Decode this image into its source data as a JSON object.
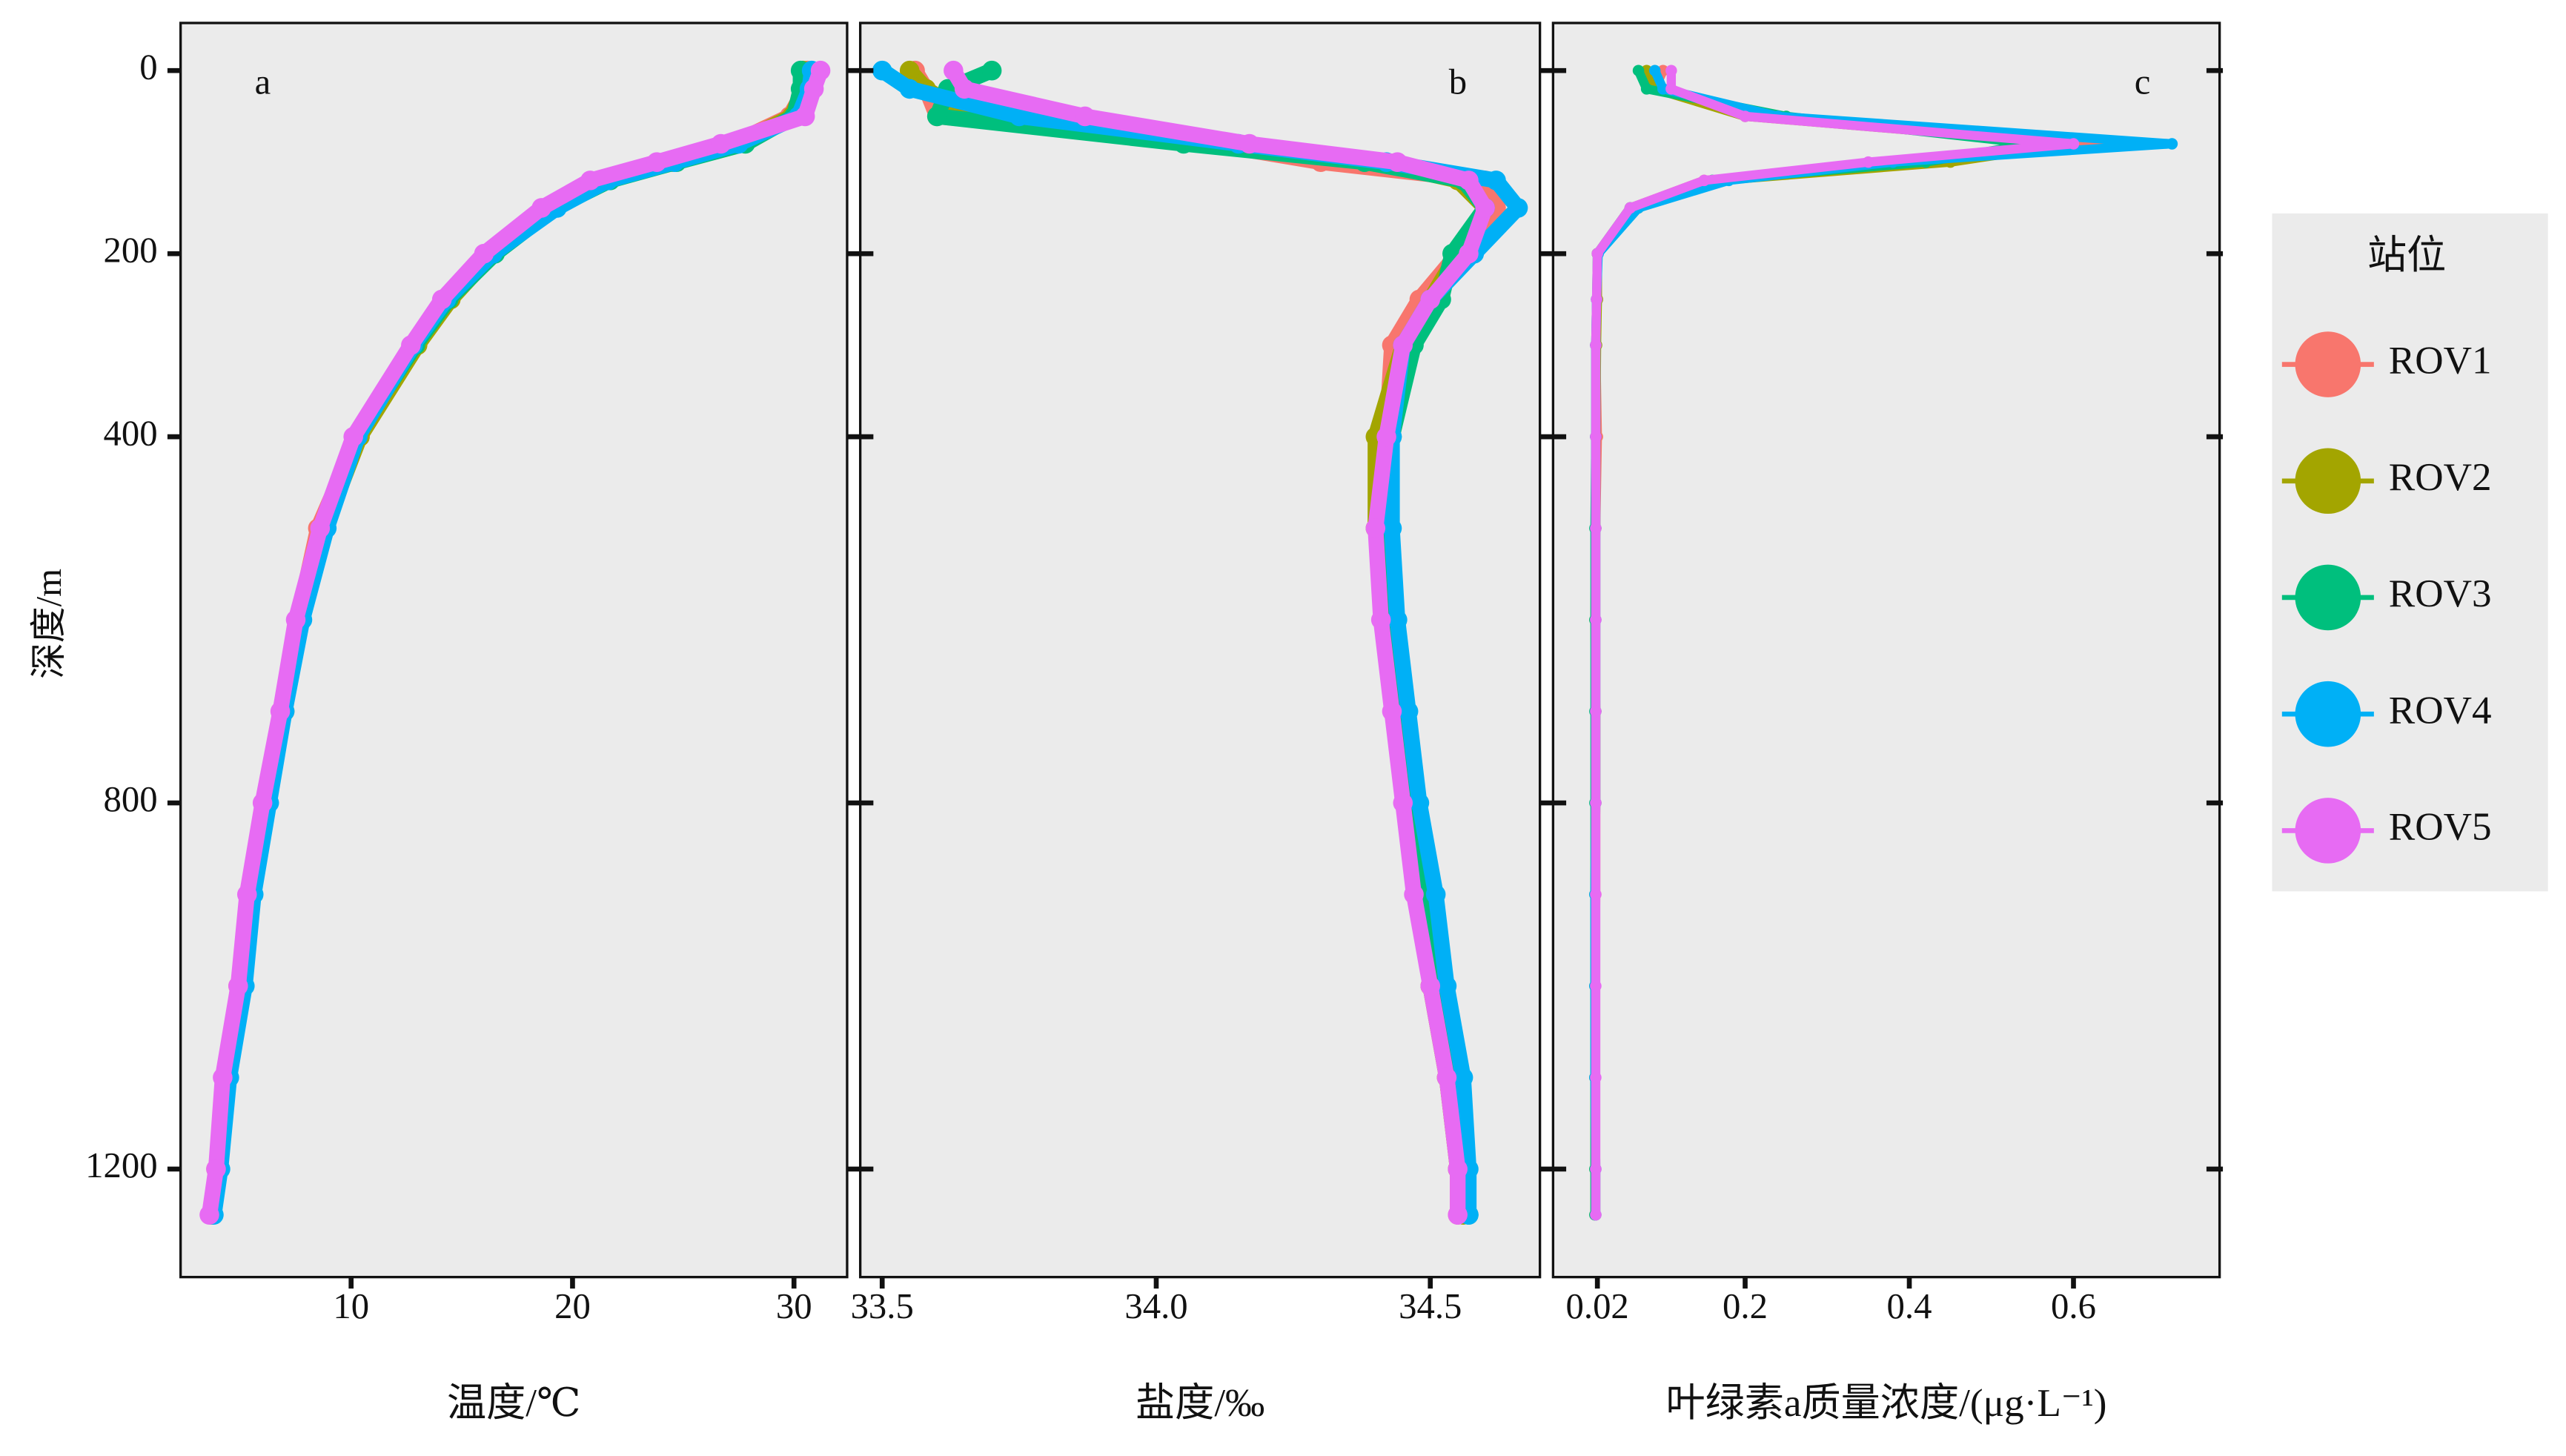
{
  "chart_data": {
    "type": "scatter",
    "y_label": "深度/m",
    "y_inverted": true,
    "ylim": [
      -52,
      1318
    ],
    "yticks": [
      0,
      200,
      400,
      800,
      1200
    ],
    "depth": [
      0,
      20,
      50,
      80,
      100,
      120,
      150,
      200,
      250,
      300,
      400,
      500,
      600,
      700,
      800,
      900,
      1000,
      1100,
      1200,
      1250
    ],
    "legend_title": "站位",
    "panels": [
      {
        "label": "a",
        "x_label": "温度/℃",
        "xlim": [
          2.3,
          32.4
        ],
        "xticks": [
          10,
          20,
          30
        ]
      },
      {
        "label": "b",
        "x_label": "盐度/‰",
        "xlim": [
          33.46,
          34.7
        ],
        "xticks": [
          33.5,
          {
            "value": 34,
            "label": "34.0"
          },
          34.5
        ]
      },
      {
        "label": "c",
        "x_label": "叶绿素a质量浓度/(μg·L⁻¹)",
        "xlim": [
          -0.034,
          0.778
        ],
        "xticks": [
          0.02,
          0.2,
          0.4,
          0.6
        ]
      }
    ],
    "series": [
      {
        "name": "ROV1",
        "color": "#F8766D",
        "values": [
          [
            30.6,
            30.5,
            29.8,
            27.2,
            24.2,
            21.3,
            18.9,
            16.3,
            14.4,
            12.9,
            10.3,
            8.5,
            7.6,
            6.9,
            6.1,
            5.4,
            4.9,
            4.3,
            3.9,
            3.7
          ],
          [
            33.56,
            33.58,
            33.6,
            34.1,
            34.3,
            34.6,
            34.62,
            34.55,
            34.48,
            34.43,
            34.42,
            34.41,
            34.42,
            34.44,
            34.46,
            34.48,
            34.5,
            34.53,
            34.55,
            34.55
          ],
          [
            0.1,
            0.09,
            0.22,
            0.65,
            0.4,
            0.15,
            0.06,
            0.02,
            0.02,
            0.018,
            0.02,
            0.018,
            0.018,
            0.018,
            0.018,
            0.018,
            0.017,
            0.017,
            0.018,
            0.018
          ]
        ]
      },
      {
        "name": "ROV2",
        "color": "#A3A500",
        "values": [
          [
            30.4,
            30.4,
            29.9,
            27.4,
            24.5,
            21.5,
            19.1,
            16.4,
            14.5,
            13.0,
            10.4,
            8.8,
            7.7,
            7.0,
            6.2,
            5.5,
            5.0,
            4.4,
            4.0,
            3.7
          ],
          [
            33.55,
            33.58,
            33.66,
            34.12,
            34.4,
            34.55,
            34.6,
            34.55,
            34.5,
            34.45,
            34.4,
            34.4,
            34.42,
            34.44,
            34.46,
            34.49,
            34.5,
            34.53,
            34.55,
            34.56
          ],
          [
            0.08,
            0.09,
            0.2,
            0.6,
            0.45,
            0.17,
            0.07,
            0.02,
            0.02,
            0.019,
            0.018,
            0.018,
            0.017,
            0.018,
            0.018,
            0.017,
            0.017,
            0.017,
            0.017,
            0.017
          ]
        ]
      },
      {
        "name": "ROV3",
        "color": "#00BF7D",
        "values": [
          [
            30.3,
            30.3,
            30.0,
            27.8,
            24.7,
            21.7,
            19.2,
            16.5,
            14.4,
            12.9,
            10.2,
            8.7,
            7.6,
            6.9,
            6.1,
            5.4,
            5.0,
            4.4,
            4.0,
            3.7
          ],
          [
            33.7,
            33.62,
            33.6,
            34.05,
            34.38,
            34.56,
            34.6,
            34.54,
            34.52,
            34.47,
            34.43,
            34.42,
            34.43,
            34.45,
            34.47,
            34.49,
            34.51,
            34.54,
            34.56,
            34.57
          ],
          [
            0.07,
            0.08,
            0.25,
            0.55,
            0.42,
            0.16,
            0.06,
            0.02,
            0.019,
            0.018,
            0.018,
            0.017,
            0.017,
            0.017,
            0.017,
            0.017,
            0.017,
            0.017,
            0.017,
            0.017
          ]
        ]
      },
      {
        "name": "ROV4",
        "color": "#00B0F6",
        "values": [
          [
            30.8,
            30.7,
            30.2,
            27.5,
            24.6,
            21.6,
            19.3,
            16.4,
            14.3,
            12.8,
            10.3,
            8.9,
            7.8,
            7.0,
            6.3,
            5.6,
            5.2,
            4.5,
            4.1,
            3.8
          ],
          [
            33.5,
            33.55,
            33.75,
            34.15,
            34.42,
            34.62,
            34.66,
            34.58,
            34.5,
            34.45,
            34.43,
            34.43,
            34.44,
            34.46,
            34.48,
            34.51,
            34.53,
            34.56,
            34.57,
            34.57
          ],
          [
            0.09,
            0.1,
            0.24,
            0.72,
            0.38,
            0.18,
            0.07,
            0.021,
            0.019,
            0.018,
            0.018,
            0.018,
            0.018,
            0.018,
            0.018,
            0.017,
            0.017,
            0.017,
            0.018,
            0.018
          ]
        ]
      },
      {
        "name": "ROV5",
        "color": "#E76BF3",
        "values": [
          [
            31.2,
            30.9,
            30.5,
            26.7,
            23.8,
            20.8,
            18.6,
            16.0,
            14.1,
            12.7,
            10.1,
            8.6,
            7.5,
            6.8,
            6.0,
            5.3,
            4.9,
            4.2,
            3.9,
            3.6
          ],
          [
            33.63,
            33.65,
            33.87,
            34.17,
            34.44,
            34.57,
            34.6,
            34.57,
            34.5,
            34.45,
            34.42,
            34.4,
            34.41,
            34.43,
            34.45,
            34.47,
            34.5,
            34.53,
            34.55,
            34.55
          ],
          [
            0.11,
            0.11,
            0.2,
            0.6,
            0.35,
            0.15,
            0.06,
            0.02,
            0.019,
            0.018,
            0.018,
            0.018,
            0.018,
            0.018,
            0.018,
            0.018,
            0.018,
            0.018,
            0.018,
            0.018
          ]
        ]
      }
    ]
  }
}
